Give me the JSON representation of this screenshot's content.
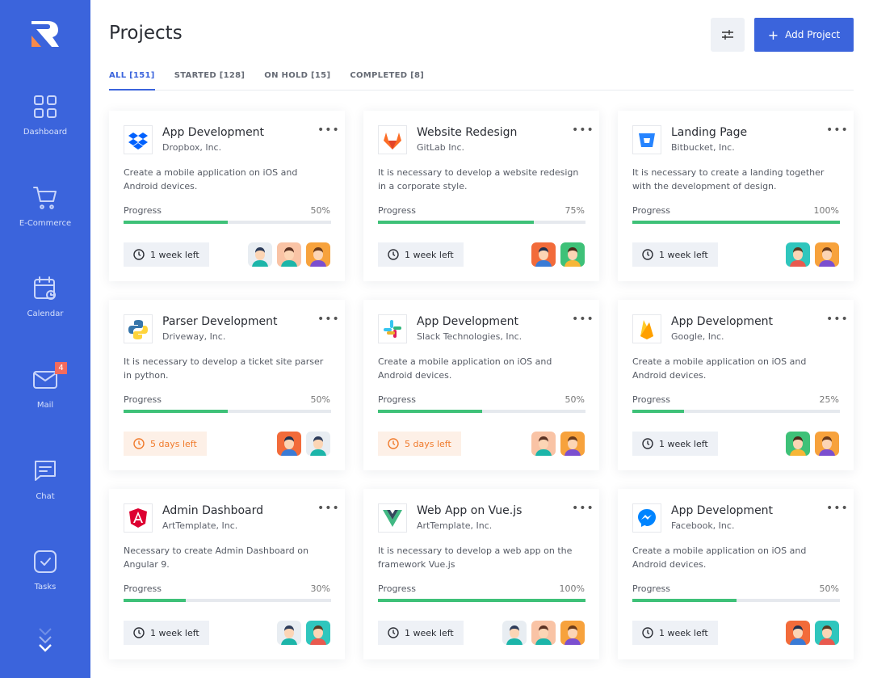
{
  "sidebar": {
    "items": [
      {
        "label": "Dashboard",
        "icon": "grid-icon"
      },
      {
        "label": "E-Commerce",
        "icon": "cart-icon"
      },
      {
        "label": "Calendar",
        "icon": "calendar-icon"
      },
      {
        "label": "Mail",
        "icon": "mail-icon",
        "badge": "4"
      },
      {
        "label": "Chat",
        "icon": "chat-icon"
      },
      {
        "label": "Tasks",
        "icon": "tasks-icon"
      }
    ]
  },
  "header": {
    "title": "Projects",
    "add_label": "Add Project"
  },
  "tabs": [
    {
      "label": "ALL [151]",
      "active": true
    },
    {
      "label": "STARTED [128]"
    },
    {
      "label": "ON HOLD [15]"
    },
    {
      "label": "COMPLETED [8]"
    }
  ],
  "colors": {
    "accent": "#3b64dc",
    "progress": "#3ec178",
    "warning": "#f07a2b",
    "badge": "#f26b5e"
  },
  "progress_label": "Progress",
  "projects": [
    {
      "name": "App Development",
      "company": "Dropbox, Inc.",
      "logo": "dropbox",
      "description": "Create a mobile application on iOS and Android devices.",
      "progress": 50,
      "time": "1 week left",
      "warn": false,
      "avatars": [
        "light",
        "peach",
        "orange"
      ]
    },
    {
      "name": "Website Redesign",
      "company": "GitLab Inc.",
      "logo": "gitlab",
      "description": "It is necessary to develop a website redesign in a corporate style.",
      "progress": 75,
      "time": "1 week left",
      "warn": false,
      "avatars": [
        "red",
        "green"
      ]
    },
    {
      "name": "Landing Page",
      "company": "Bitbucket, Inc.",
      "logo": "bitbucket",
      "description": "It is necessary to create a landing together with the development of design.",
      "progress": 100,
      "time": "1 week left",
      "warn": false,
      "avatars": [
        "teal",
        "orange"
      ]
    },
    {
      "name": "Parser Development",
      "company": "Driveway, Inc.",
      "logo": "python",
      "description": "It is necessary to develop a ticket site parser in python.",
      "progress": 50,
      "time": "5 days left",
      "warn": true,
      "avatars": [
        "red",
        "light"
      ]
    },
    {
      "name": "App Development",
      "company": "Slack Technologies, Inc.",
      "logo": "slack",
      "description": "Create a mobile application on iOS and Android devices.",
      "progress": 50,
      "time": "5 days left",
      "warn": true,
      "avatars": [
        "peach",
        "orange"
      ]
    },
    {
      "name": "App Development",
      "company": "Google, Inc.",
      "logo": "firebase",
      "description": "Create a mobile application on iOS and Android devices.",
      "progress": 25,
      "time": "1 week left",
      "warn": false,
      "avatars": [
        "green",
        "orange"
      ]
    },
    {
      "name": "Admin Dashboard",
      "company": "ArtTemplate, Inc.",
      "logo": "angular",
      "description": "Necessary to create Admin Dashboard on Angular 9.",
      "progress": 30,
      "time": "1 week left",
      "warn": false,
      "avatars": [
        "light",
        "teal"
      ]
    },
    {
      "name": "Web App on Vue.js",
      "company": "ArtTemplate, Inc.",
      "logo": "vue",
      "description": "It is necessary to develop a web app on the framework Vue.js",
      "progress": 100,
      "time": "1 week left",
      "warn": false,
      "avatars": [
        "light",
        "peach",
        "orange"
      ]
    },
    {
      "name": "App Development",
      "company": "Facebook, Inc.",
      "logo": "messenger",
      "description": "Create a mobile application on iOS and Android devices.",
      "progress": 50,
      "time": "1 week left",
      "warn": false,
      "avatars": [
        "red",
        "teal"
      ]
    }
  ]
}
